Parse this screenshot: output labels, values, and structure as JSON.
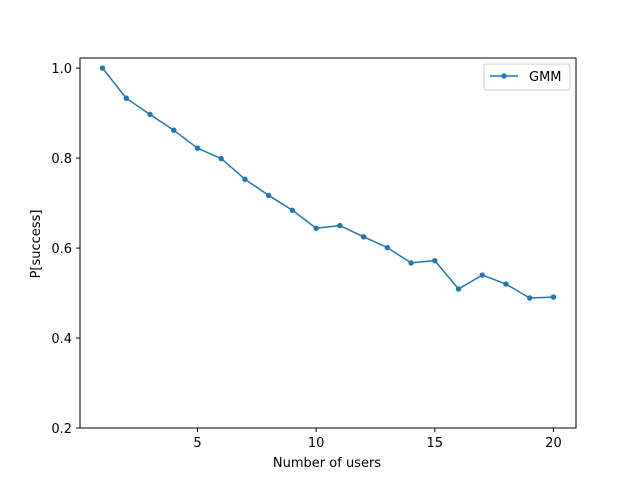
{
  "chart_data": {
    "type": "line",
    "xlabel": "Number of users",
    "ylabel": "P[success]",
    "xlim": [
      0.05,
      20.95
    ],
    "ylim": [
      0.2,
      1.0225
    ],
    "xticks": [
      5,
      10,
      15,
      20
    ],
    "yticks": [
      0.2,
      0.4,
      0.6,
      0.8,
      1.0
    ],
    "xtick_labels": [
      "5",
      "10",
      "15",
      "20"
    ],
    "ytick_labels": [
      "0.2",
      "0.4",
      "0.6",
      "0.8",
      "1.0"
    ],
    "grid": false,
    "legend_position": "top-right",
    "x": [
      1,
      2,
      3,
      4,
      5,
      6,
      7,
      8,
      9,
      10,
      11,
      12,
      13,
      14,
      15,
      16,
      17,
      18,
      19,
      20
    ],
    "series": [
      {
        "name": "GMM",
        "color": "#1f77b4",
        "marker": "point",
        "values": [
          1.0,
          0.933,
          0.897,
          0.862,
          0.822,
          0.799,
          0.753,
          0.717,
          0.684,
          0.644,
          0.65,
          0.625,
          0.601,
          0.567,
          0.572,
          0.509,
          0.54,
          0.52,
          0.489,
          0.491
        ]
      }
    ]
  }
}
